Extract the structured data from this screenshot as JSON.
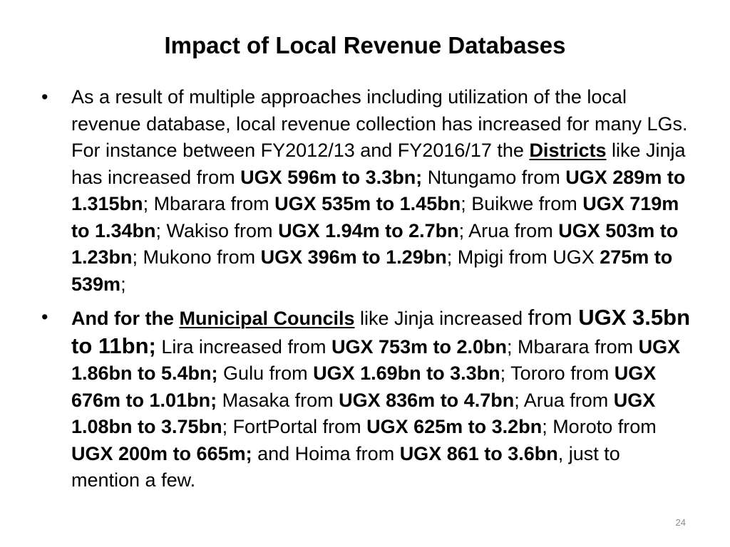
{
  "slide": {
    "title": "Impact of Local Revenue Databases",
    "page_number": "24",
    "bullets": [
      {
        "marker": "•",
        "runs": [
          {
            "text": "As a result of multiple approaches including utilization of the local revenue database, local revenue collection has increased for many LGs. For instance between FY2012/13 and FY2016/17 the ",
            "bold": false,
            "underline": false
          },
          {
            "text": "Districts",
            "bold": true,
            "underline": true
          },
          {
            "text": " like Jinja has increased from ",
            "bold": false,
            "underline": false
          },
          {
            "text": "UGX 596m to 3.3bn;",
            "bold": true,
            "underline": false
          },
          {
            "text": " Ntungamo from ",
            "bold": false,
            "underline": false
          },
          {
            "text": "UGX 289m to 1.315bn",
            "bold": true,
            "underline": false
          },
          {
            "text": "; Mbarara from ",
            "bold": false,
            "underline": false
          },
          {
            "text": "UGX 535m to 1.45bn",
            "bold": true,
            "underline": false
          },
          {
            "text": "; Buikwe from ",
            "bold": false,
            "underline": false
          },
          {
            "text": "UGX 719m to 1.34bn",
            "bold": true,
            "underline": false
          },
          {
            "text": "; Wakiso from ",
            "bold": false,
            "underline": false
          },
          {
            "text": "UGX 1.94m to 2.7bn",
            "bold": true,
            "underline": false
          },
          {
            "text": "; Arua from ",
            "bold": false,
            "underline": false
          },
          {
            "text": "UGX 503m to 1.23bn",
            "bold": true,
            "underline": false
          },
          {
            "text": "; Mukono from ",
            "bold": false,
            "underline": false
          },
          {
            "text": "UGX 396m to 1.29bn",
            "bold": true,
            "underline": false
          },
          {
            "text": "; Mpigi from UGX ",
            "bold": false,
            "underline": false
          },
          {
            "text": "275m to 539m",
            "bold": true,
            "underline": false
          },
          {
            "text": ";",
            "bold": false,
            "underline": false
          }
        ]
      },
      {
        "marker": "•",
        "runs": [
          {
            "text": "And for the ",
            "bold": true,
            "underline": false
          },
          {
            "text": "Municipal Councils",
            "bold": true,
            "underline": true
          },
          {
            "text": " like Jinja increased ",
            "bold": false,
            "underline": false
          },
          {
            "text": "from ",
            "bold": false,
            "underline": false
          },
          {
            "text": "UGX 3.5bn to 11bn;",
            "bold": true,
            "underline": false
          },
          {
            "text": " Lira increased from ",
            "bold": false,
            "underline": false
          },
          {
            "text": "UGX 753m to 2.0bn",
            "bold": true,
            "underline": false
          },
          {
            "text": "; Mbarara from ",
            "bold": false,
            "underline": false
          },
          {
            "text": "UGX 1.86bn to 5.4bn;",
            "bold": true,
            "underline": false
          },
          {
            "text": " Gulu from ",
            "bold": false,
            "underline": false
          },
          {
            "text": "UGX 1.69bn to 3.3bn",
            "bold": true,
            "underline": false
          },
          {
            "text": "; Tororo from ",
            "bold": false,
            "underline": false
          },
          {
            "text": "UGX 676m to 1.01bn;",
            "bold": true,
            "underline": false
          },
          {
            "text": " Masaka from ",
            "bold": false,
            "underline": false
          },
          {
            "text": "UGX 836m to 4.7bn",
            "bold": true,
            "underline": false
          },
          {
            "text": "; Arua from ",
            "bold": false,
            "underline": false
          },
          {
            "text": "UGX 1.08bn to 3.75bn",
            "bold": true,
            "underline": false
          },
          {
            "text": "; FortPortal from ",
            "bold": false,
            "underline": false
          },
          {
            "text": "UGX 625m to 3.2bn",
            "bold": true,
            "underline": false
          },
          {
            "text": "; Moroto from ",
            "bold": false,
            "underline": false
          },
          {
            "text": "UGX 200m to 665m;",
            "bold": true,
            "underline": false
          },
          {
            "text": " and Hoima from ",
            "bold": false,
            "underline": false
          },
          {
            "text": "UGX 861 to 3.6bn",
            "bold": true,
            "underline": false
          },
          {
            "text": ", just to mention a few.",
            "bold": false,
            "underline": false
          }
        ]
      }
    ]
  },
  "colors": {
    "background": "#ffffff",
    "text": "#000000",
    "page_number": "#8c8c8c"
  }
}
